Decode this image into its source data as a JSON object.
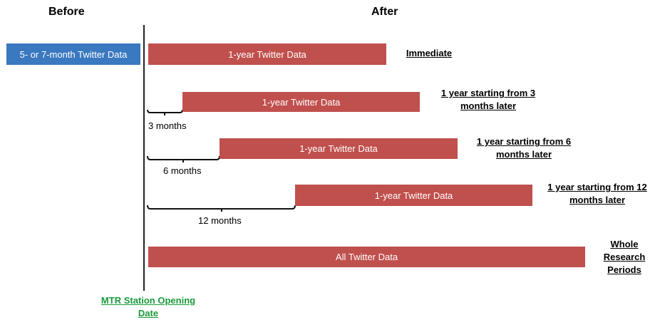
{
  "header": {
    "before": "Before",
    "after": "After"
  },
  "before_box": "5- or 7-month Twitter Data",
  "rows": [
    {
      "bar": "1-year Twitter Data",
      "label_lines": [
        "Immediate"
      ]
    },
    {
      "bar": "1-year Twitter Data",
      "delay": "3 months",
      "label_lines": [
        "1 year starting from 3",
        "months later"
      ]
    },
    {
      "bar": "1-year Twitter Data",
      "delay": "6 months",
      "label_lines": [
        "1 year starting from 6",
        "months later"
      ]
    },
    {
      "bar": "1-year Twitter Data",
      "delay": "12 months",
      "label_lines": [
        "1 year starting from 12",
        "months later"
      ]
    },
    {
      "bar": "All Twitter Data",
      "label_lines": [
        "Whole",
        "Research",
        "Periods"
      ]
    }
  ],
  "footer_lines": [
    "MTR Station Opening",
    "Date"
  ]
}
